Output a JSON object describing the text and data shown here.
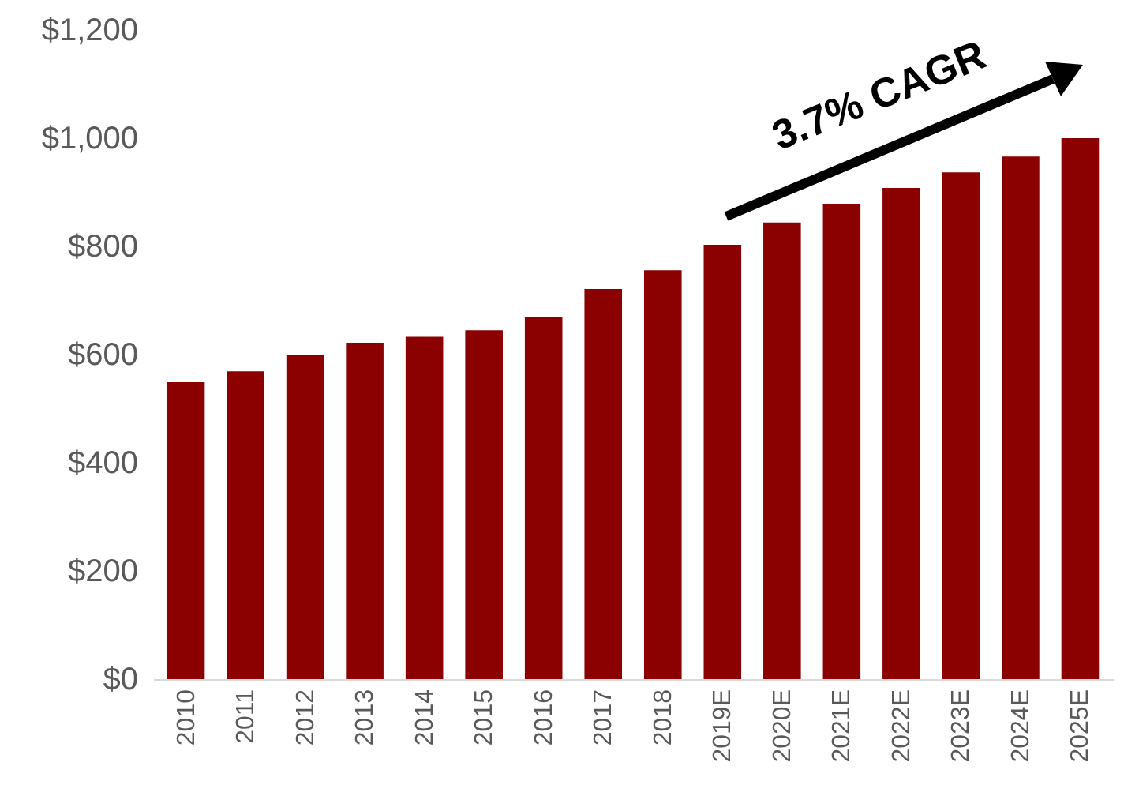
{
  "chart_data": {
    "type": "bar",
    "categories": [
      "2010",
      "2011",
      "2012",
      "2013",
      "2014",
      "2015",
      "2016",
      "2017",
      "2018",
      "2019E",
      "2020E",
      "2021E",
      "2022E",
      "2023E",
      "2024E",
      "2025E"
    ],
    "values": [
      549,
      569,
      599,
      622,
      633,
      645,
      669,
      721,
      756,
      803,
      844,
      879,
      908,
      937,
      966,
      1000
    ],
    "color": "#8b0000",
    "ylim": [
      0,
      1200
    ],
    "yticks": [
      {
        "value": 0,
        "label": "$0"
      },
      {
        "value": 200,
        "label": "$200"
      },
      {
        "value": 400,
        "label": "$400"
      },
      {
        "value": 600,
        "label": "$600"
      },
      {
        "value": 800,
        "label": "$800"
      },
      {
        "value": 1000,
        "label": "$1,000"
      },
      {
        "value": 1200,
        "label": "$1,200"
      }
    ],
    "grid": false,
    "annotations": [
      "3.7% CAGR"
    ]
  }
}
